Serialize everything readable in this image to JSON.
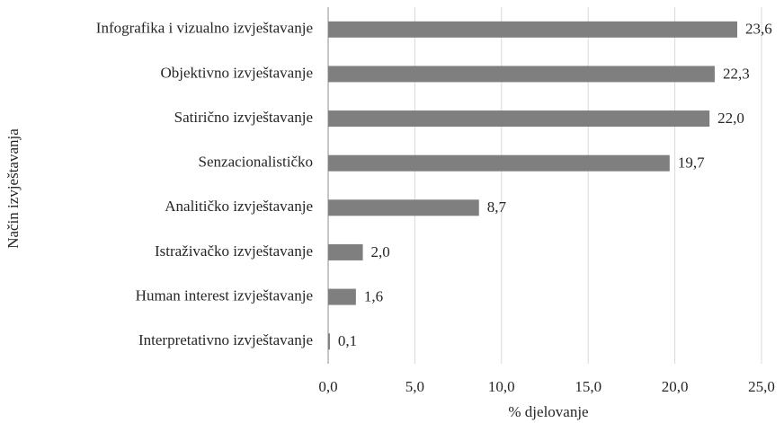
{
  "chart_data": {
    "type": "barh",
    "categories": [
      "Infografika i vizualno izvještavanje",
      "Objektivno izvještavanje",
      "Satirično izvještavanje",
      "Senzacionalističko",
      "Analitičko izvještavanje",
      "Istraživačko izvještavanje",
      "Human interest izvještavanje",
      "Interpretativno izvještavanje"
    ],
    "values": [
      23.6,
      22.3,
      22.0,
      19.7,
      8.7,
      2.0,
      1.6,
      0.1
    ],
    "value_labels": [
      "23,6",
      "22,3",
      "22,0",
      "19,7",
      "8,7",
      "2,0",
      "1,6",
      "0,1"
    ],
    "color": "#7f7f7f",
    "xlim": [
      0,
      25
    ],
    "xticks": [
      {
        "value": 0,
        "label": "0,0"
      },
      {
        "value": 5,
        "label": "5,0"
      },
      {
        "value": 10,
        "label": "10,0"
      },
      {
        "value": 15,
        "label": "15,0"
      },
      {
        "value": 20,
        "label": "20,0"
      },
      {
        "value": 25,
        "label": "25,0"
      }
    ],
    "xlabel": "% djelovanje",
    "ylabel": "Način izvještavanja",
    "grid": true
  }
}
